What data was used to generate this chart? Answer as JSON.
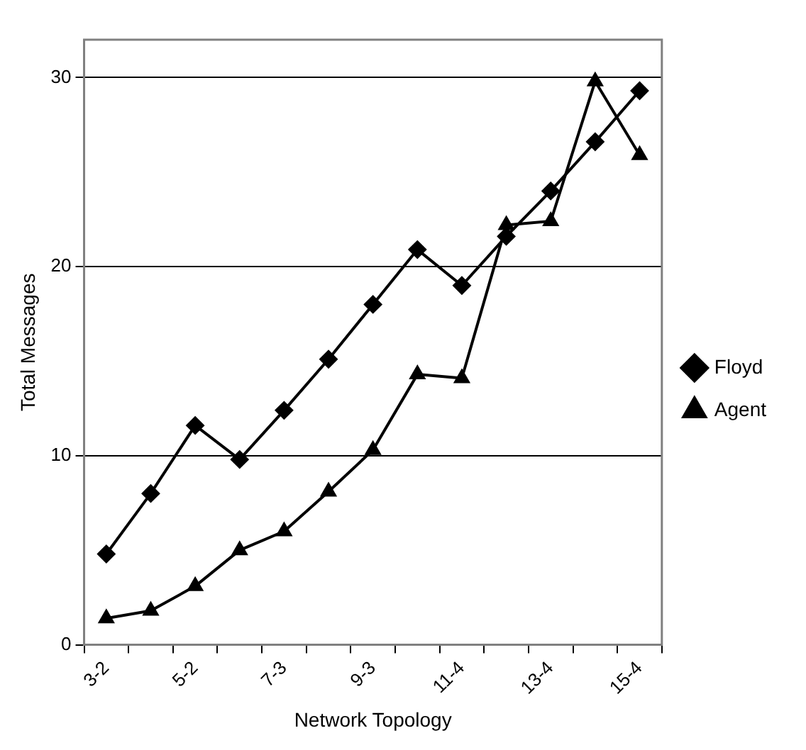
{
  "chart_data": {
    "type": "line",
    "xlabel": "Network Topology",
    "ylabel": "Total Messages",
    "categories": [
      "3-2",
      null,
      "5-2",
      null,
      "7-3",
      null,
      "9-3",
      null,
      "11-4",
      null,
      "13-4",
      null,
      "15-4"
    ],
    "series": [
      {
        "name": "Floyd",
        "color": "#000000",
        "marker": "diamond",
        "values": [
          4.8,
          8.0,
          11.6,
          9.8,
          12.4,
          15.1,
          18.0,
          20.9,
          19.0,
          21.6,
          24.0,
          26.6,
          29.3
        ]
      },
      {
        "name": "Agent",
        "color": "#000000",
        "marker": "triangle",
        "values": [
          1.4,
          1.8,
          3.1,
          5.0,
          6.0,
          8.1,
          10.3,
          14.3,
          14.1,
          22.2,
          22.4,
          29.8,
          25.9
        ]
      }
    ],
    "ylim": [
      0,
      32
    ],
    "yticks": [
      0,
      10,
      20,
      30
    ],
    "grid": "y",
    "legend": "right",
    "line_style": "solid"
  }
}
